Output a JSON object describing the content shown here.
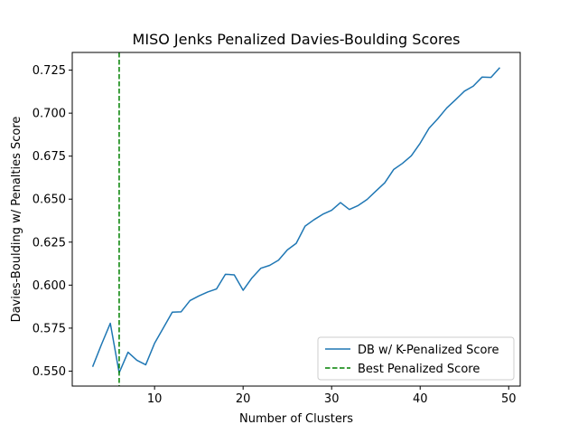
{
  "chart_data": {
    "type": "line",
    "title": "MISO Jenks Penalized Davies-Boulding Scores",
    "xlabel": "Number of Clusters",
    "ylabel": "Davies-Boulding w/ Penalties Score",
    "xlim": [
      0.7,
      51.3
    ],
    "ylim": [
      0.5413,
      0.7353
    ],
    "x_ticks": [
      10,
      20,
      30,
      40,
      50
    ],
    "y_ticks": [
      0.55,
      0.575,
      0.6,
      0.625,
      0.65,
      0.675,
      0.7,
      0.725
    ],
    "y_tick_labels": [
      "0.550",
      "0.575",
      "0.600",
      "0.625",
      "0.650",
      "0.675",
      "0.700",
      "0.725"
    ],
    "grid": false,
    "legend_position": "lower-right",
    "series": [
      {
        "name": "DB w/ K-Penalized Score",
        "style": "solid",
        "color": "#1f77b4",
        "x": [
          3,
          4,
          5,
          6,
          7,
          8,
          9,
          10,
          11,
          12,
          13,
          14,
          15,
          16,
          17,
          18,
          19,
          20,
          21,
          22,
          23,
          24,
          25,
          26,
          27,
          28,
          29,
          30,
          31,
          32,
          33,
          34,
          35,
          36,
          37,
          38,
          39,
          40,
          41,
          42,
          43,
          44,
          45,
          46,
          47,
          48,
          49
        ],
        "y": [
          0.5525,
          0.5655,
          0.5778,
          0.549,
          0.561,
          0.5563,
          0.5537,
          0.5662,
          0.5752,
          0.5843,
          0.5845,
          0.591,
          0.5937,
          0.596,
          0.5978,
          0.6063,
          0.606,
          0.597,
          0.6042,
          0.6098,
          0.6115,
          0.6145,
          0.6205,
          0.6243,
          0.6343,
          0.638,
          0.6412,
          0.6435,
          0.648,
          0.644,
          0.6463,
          0.6498,
          0.6547,
          0.6595,
          0.6672,
          0.6708,
          0.6752,
          0.6825,
          0.6912,
          0.6968,
          0.703,
          0.7078,
          0.7128,
          0.7157,
          0.721,
          0.7208,
          0.7265
        ]
      },
      {
        "name": "Best Penalized Score",
        "style": "dashed",
        "color": "#008000",
        "vertical_line_x": 6
      }
    ]
  }
}
